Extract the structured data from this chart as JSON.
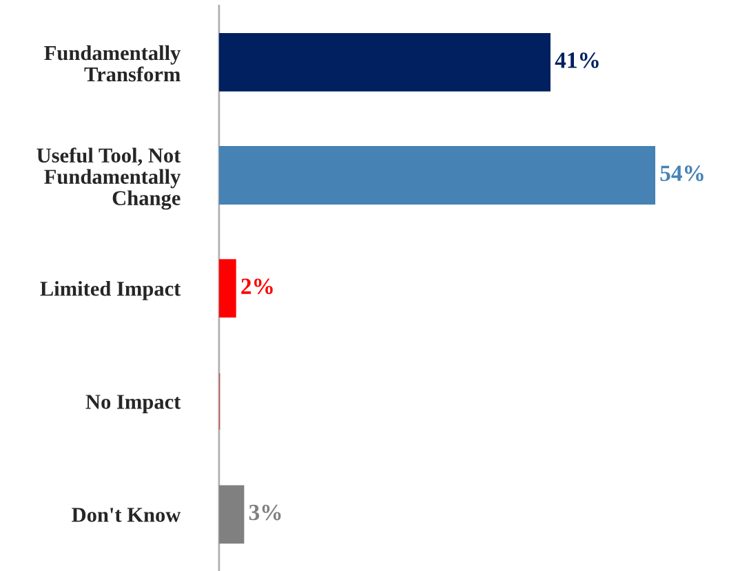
{
  "chart_data": {
    "type": "bar",
    "orientation": "horizontal",
    "categories": [
      "Fundamentally\nTransform",
      "Useful Tool, Not\nFundamentally\nChange",
      "Limited Impact",
      "No Impact",
      "Don't Know"
    ],
    "values": [
      41,
      54,
      2,
      0,
      3
    ],
    "colors": [
      "#002060",
      "#4682b4",
      "#ff0000",
      "#c0504d",
      "#808080"
    ],
    "value_labels": [
      "41%",
      "54%",
      "2%",
      null,
      "3%"
    ],
    "grid": false,
    "legend": false
  }
}
